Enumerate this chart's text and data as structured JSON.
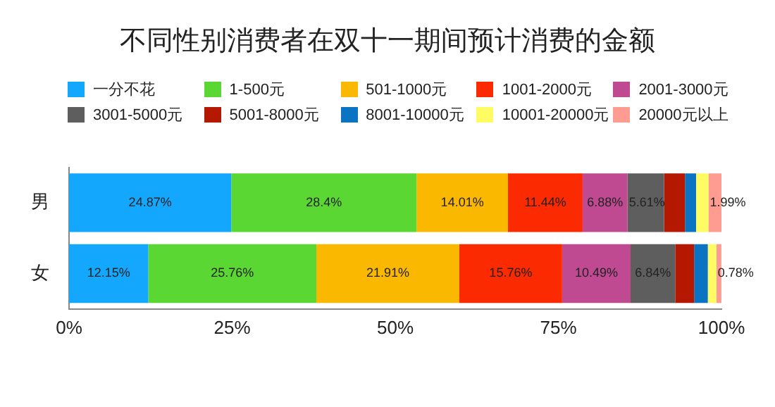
{
  "chart_data": {
    "type": "bar",
    "title": "不同性别消费者在双十一期间预计消费的金额",
    "orientation": "horizontal",
    "stacked": true,
    "categories": [
      "男",
      "女"
    ],
    "series": [
      {
        "name": "一分不花",
        "color": "#13a8fe",
        "values": [
          24.87,
          12.15
        ],
        "value_labels": [
          "24.87%",
          "12.15%"
        ]
      },
      {
        "name": "1-500元",
        "color": "#5ad732",
        "values": [
          28.4,
          25.76
        ],
        "value_labels": [
          "28.4%",
          "25.76%"
        ]
      },
      {
        "name": "501-1000元",
        "color": "#fbb800",
        "values": [
          14.01,
          21.91
        ],
        "value_labels": [
          "14.01%",
          "21.91%"
        ]
      },
      {
        "name": "1001-2000元",
        "color": "#fc2a00",
        "values": [
          11.44,
          15.76
        ],
        "value_labels": [
          "11.44%",
          "15.76%"
        ]
      },
      {
        "name": "2001-3000元",
        "color": "#bf4a91",
        "values": [
          6.88,
          10.49
        ],
        "value_labels": [
          "6.88%",
          "10.49%"
        ]
      },
      {
        "name": "3001-5000元",
        "color": "#5e5e5e",
        "values": [
          5.61,
          6.84
        ],
        "value_labels": [
          "5.61%",
          "6.84%"
        ]
      },
      {
        "name": "5001-8000元",
        "color": "#b51800",
        "values": [
          3.2,
          2.9
        ],
        "value_labels": [
          null,
          null
        ]
      },
      {
        "name": "8001-10000元",
        "color": "#0a74c3",
        "values": [
          1.7,
          2.1
        ],
        "value_labels": [
          null,
          null
        ]
      },
      {
        "name": "10001-20000元",
        "color": "#fffb63",
        "values": [
          1.9,
          1.3
        ],
        "value_labels": [
          null,
          null
        ]
      },
      {
        "name": "20000元以上",
        "color": "#ff9c92",
        "values": [
          1.99,
          0.78
        ],
        "value_labels": [
          "1.99%",
          "0.78%"
        ]
      }
    ],
    "xlim": [
      0,
      100
    ],
    "xticks": [
      {
        "value": 0,
        "label": "0%"
      },
      {
        "value": 25,
        "label": "25%"
      },
      {
        "value": 50,
        "label": "50%"
      },
      {
        "value": 75,
        "label": "75%"
      },
      {
        "value": 100,
        "label": "100%"
      }
    ],
    "grid": false,
    "legend": "top"
  }
}
